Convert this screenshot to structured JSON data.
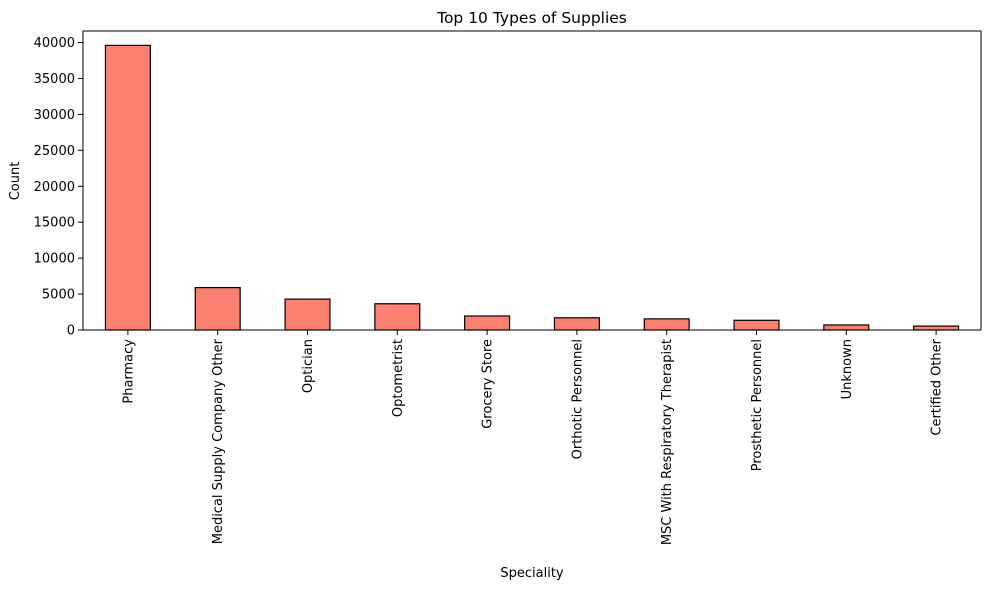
{
  "chart_data": {
    "type": "bar",
    "title": "Top 10 Types of Supplies",
    "xlabel": "Speciality",
    "ylabel": "Count",
    "categories": [
      "Pharmacy",
      "Medical Supply Company Other",
      "Optician",
      "Optometrist",
      "Grocery Store",
      "Orthotic Personnel",
      "MSC With Respiratory Therapist",
      "Prosthetic Personnel",
      "Unknown",
      "Certified Other"
    ],
    "values": [
      39600,
      5900,
      4300,
      3650,
      1950,
      1700,
      1550,
      1350,
      700,
      550
    ],
    "ylim": [
      0,
      41600
    ],
    "yticks": [
      0,
      5000,
      10000,
      15000,
      20000,
      25000,
      30000,
      35000,
      40000
    ],
    "bar_color": "#fa8072",
    "edge_color": "#000000",
    "grid": false,
    "legend": "none"
  }
}
